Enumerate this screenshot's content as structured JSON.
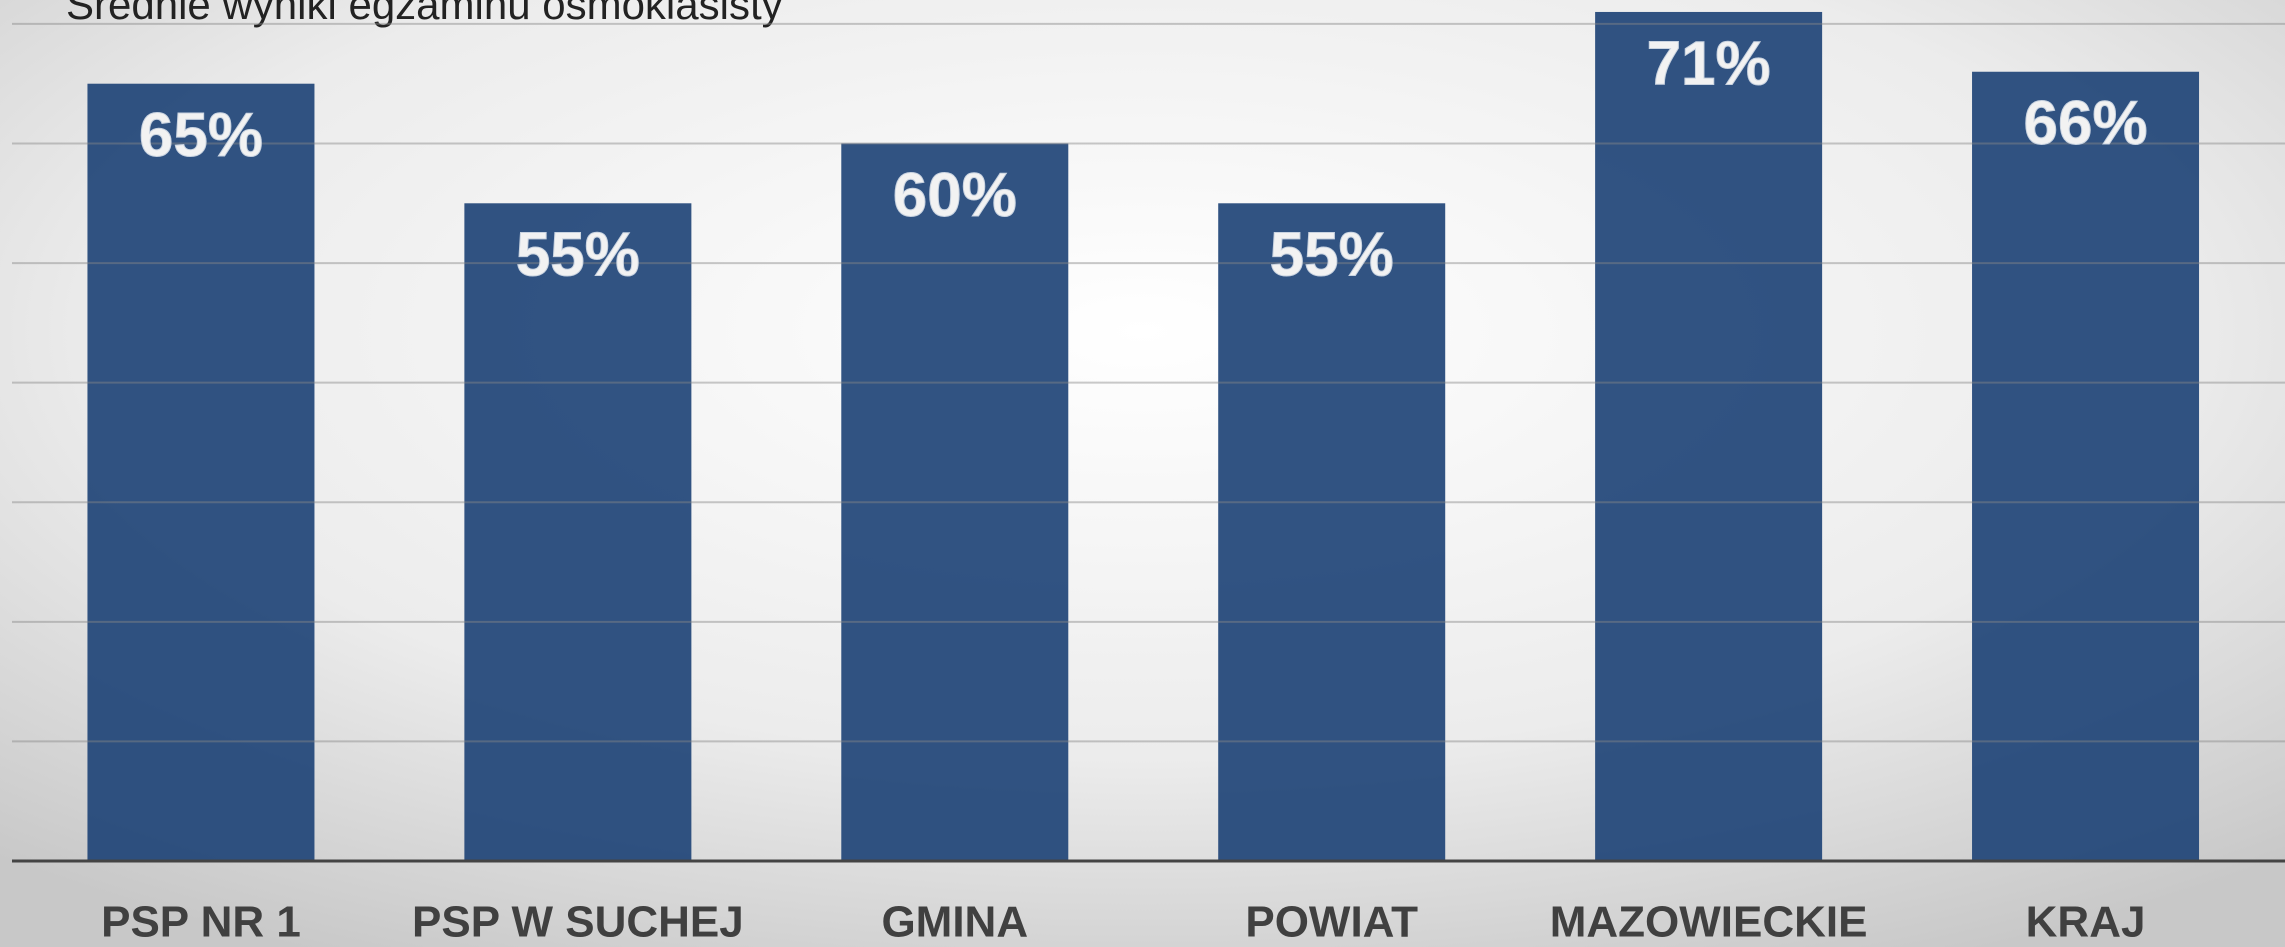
{
  "chart_data": {
    "type": "bar",
    "title": "Średnie wyniki egzaminu ósmoklasisty",
    "categories": [
      "PSP NR 1",
      "PSP W SUCHEJ",
      "GMINA",
      "POWIAT",
      "MAZOWIECKIE",
      "KRAJ"
    ],
    "values": [
      65,
      55,
      60,
      55,
      71,
      66
    ],
    "value_labels": [
      "65%",
      "55%",
      "60%",
      "55%",
      "71%",
      "66%"
    ],
    "color": "#1f4477",
    "ylim": [
      0,
      72
    ],
    "yticks": [
      0,
      10,
      20,
      30,
      40,
      50,
      60,
      70
    ],
    "grid": true
  }
}
